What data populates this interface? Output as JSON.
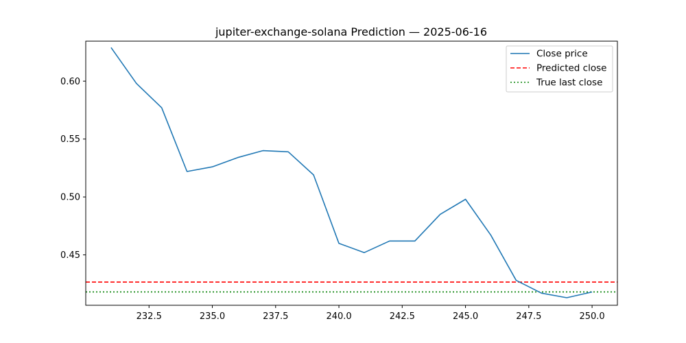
{
  "chart_data": {
    "type": "line",
    "title": "jupiter-exchange-solana Prediction — 2025-06-16",
    "xlabel": "",
    "ylabel": "",
    "xlim": [
      230.0,
      251.0
    ],
    "ylim": [
      0.4065,
      0.6345
    ],
    "x_ticks": [
      232.5,
      235.0,
      237.5,
      240.0,
      242.5,
      245.0,
      247.5,
      250.0
    ],
    "x_tick_labels": [
      "232.5",
      "235.0",
      "237.5",
      "240.0",
      "242.5",
      "245.0",
      "247.5",
      "250.0"
    ],
    "y_ticks": [
      0.45,
      0.5,
      0.55,
      0.6
    ],
    "y_tick_labels": [
      "0.45",
      "0.50",
      "0.55",
      "0.60"
    ],
    "grid": false,
    "legend_position": "top-right",
    "series": [
      {
        "name": "Close price",
        "style": "solid",
        "color": "#1f77b4",
        "x": [
          231,
          232,
          233,
          234,
          235,
          236,
          237,
          238,
          239,
          240,
          241,
          242,
          243,
          244,
          245,
          246,
          247,
          248,
          249,
          250
        ],
        "y": [
          0.629,
          0.598,
          0.577,
          0.522,
          0.526,
          0.534,
          0.54,
          0.539,
          0.519,
          0.46,
          0.452,
          0.462,
          0.462,
          0.485,
          0.498,
          0.467,
          0.428,
          0.417,
          0.413,
          0.418
        ]
      }
    ],
    "hlines": [
      {
        "name": "Predicted close",
        "style": "dashed",
        "color": "#ff0000",
        "y": 0.4265
      },
      {
        "name": "True last close",
        "style": "dotted",
        "color": "#008000",
        "y": 0.418
      }
    ]
  }
}
